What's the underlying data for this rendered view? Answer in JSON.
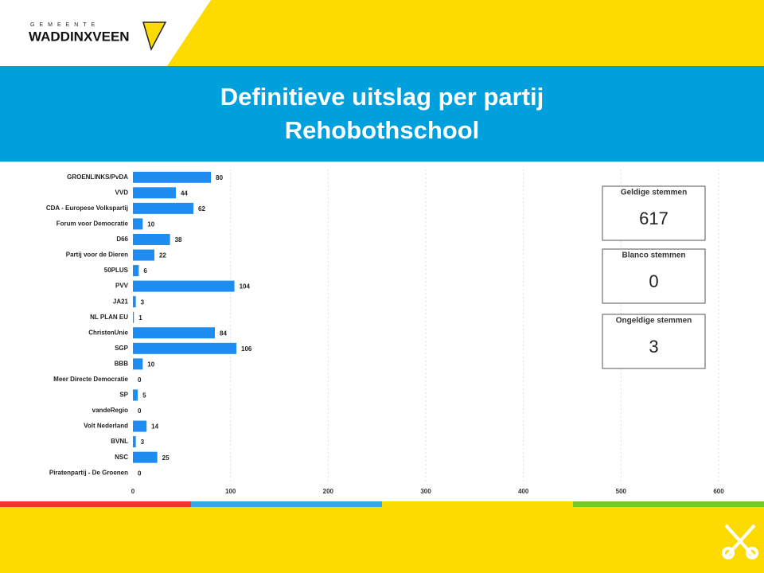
{
  "logo": {
    "top": "GEMEENTE",
    "name": "WADDINXVEEN"
  },
  "chart_data": {
    "type": "bar",
    "orientation": "horizontal",
    "title": "Definitieve uitslag per partij",
    "subtitle": "Rehobothschool",
    "categories": [
      "GROENLINKS/PvDA",
      "VVD",
      "CDA - Europese Volkspartij",
      "Forum voor Democratie",
      "D66",
      "Partij voor de Dieren",
      "50PLUS",
      "PVV",
      "JA21",
      "NL PLAN EU",
      "ChristenUnie",
      "SGP",
      "BBB",
      "Meer Directe Democratie",
      "SP",
      "vandeRegio",
      "Volt Nederland",
      "BVNL",
      "NSC",
      "Piratenpartij - De Groenen"
    ],
    "values": [
      80,
      44,
      62,
      10,
      38,
      22,
      6,
      104,
      3,
      1,
      84,
      106,
      10,
      0,
      5,
      0,
      14,
      3,
      25,
      0
    ],
    "color": "#1e8cf0",
    "xlim": [
      0,
      600
    ],
    "xticks": [
      0,
      100,
      200,
      300,
      400,
      500,
      600
    ],
    "grid": true
  },
  "cards": [
    {
      "label": "Geldige stemmen",
      "value": 617
    },
    {
      "label": "Blanco stemmen",
      "value": 0
    },
    {
      "label": "Ongeldige stemmen",
      "value": 3
    }
  ]
}
